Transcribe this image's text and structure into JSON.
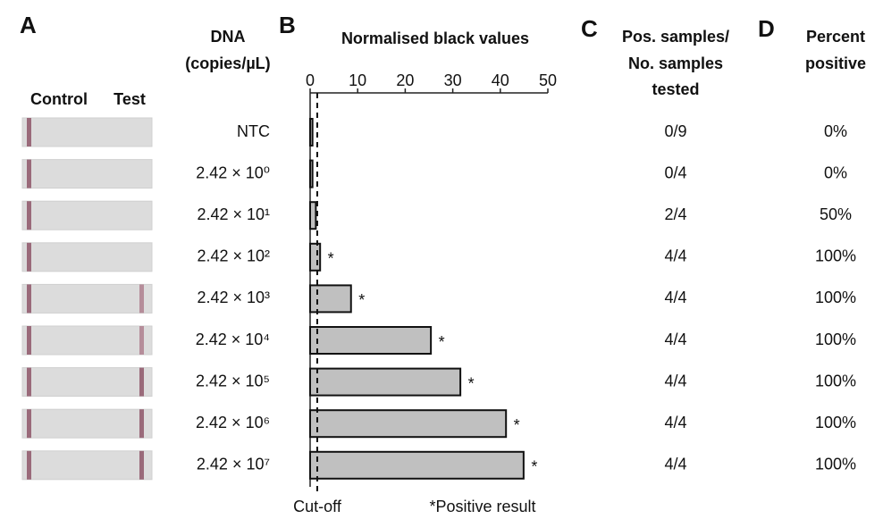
{
  "panels": [
    "A",
    "B",
    "C",
    "D"
  ],
  "strip_headers": [
    "Control",
    "Test"
  ],
  "dna_header": [
    "DNA",
    "(copies/µL)"
  ],
  "chart_data": {
    "type": "bar",
    "orientation": "horizontal",
    "title": "Normalised black values",
    "categories": [
      "NTC",
      "2.42 × 10⁰",
      "2.42 × 10¹",
      "2.42 × 10²",
      "2.42 × 10³",
      "2.42 × 10⁴",
      "2.42 × 10⁵",
      "2.42 × 10⁶",
      "2.42 × 10⁷"
    ],
    "values": [
      0.5,
      0.5,
      1.2,
      2.1,
      8.6,
      25.4,
      31.6,
      41.2,
      44.9
    ],
    "markers": [
      null,
      null,
      null,
      "*",
      "*",
      "*",
      "*",
      "*",
      "*"
    ],
    "color": "#c0c0c0",
    "xlim": [
      0,
      50
    ],
    "xticks": [
      0,
      10,
      20,
      30,
      40,
      50
    ],
    "cutoff": 1.5,
    "cutoff_label": "Cut-off",
    "note": "*Positive result"
  },
  "table": {
    "headers": [
      [
        "Pos. samples/",
        "No. samples",
        "tested"
      ],
      [
        "Percent",
        "positive"
      ]
    ],
    "rows": [
      [
        "0/9",
        "0%"
      ],
      [
        "0/4",
        "0%"
      ],
      [
        "2/4",
        "50%"
      ],
      [
        "4/4",
        "100%"
      ],
      [
        "4/4",
        "100%"
      ],
      [
        "4/4",
        "100%"
      ],
      [
        "4/4",
        "100%"
      ],
      [
        "4/4",
        "100%"
      ],
      [
        "4/4",
        "100%"
      ]
    ]
  }
}
